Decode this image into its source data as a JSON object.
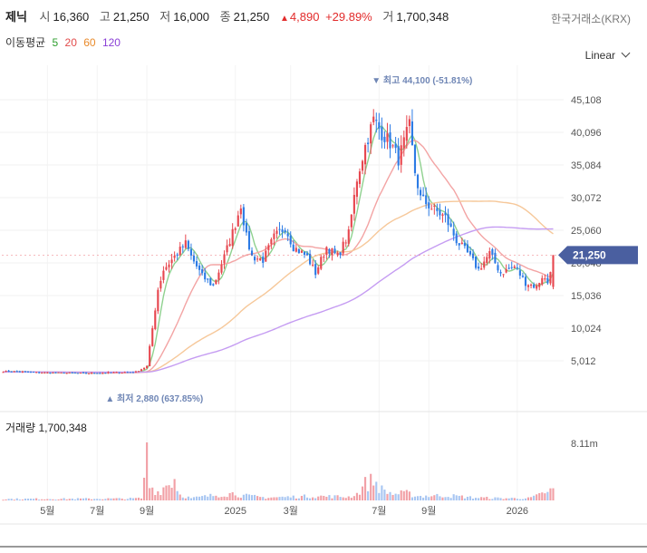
{
  "header": {
    "name": "제닉",
    "open_label": "시",
    "open": "16,360",
    "high_label": "고",
    "high": "21,250",
    "low_label": "저",
    "low": "16,000",
    "close_label": "종",
    "close": "21,250",
    "change_arrow": "▲",
    "change": "4,890",
    "change_pct": "+29.89%",
    "volume_label": "거",
    "volume": "1,700,348"
  },
  "exchange": "한국거래소(KRX)",
  "ma_legend": {
    "label": "이동평균",
    "items": [
      {
        "text": "5",
        "color": "#2e9e2e"
      },
      {
        "text": "20",
        "color": "#e24b4b"
      },
      {
        "text": "60",
        "color": "#e98a2a"
      },
      {
        "text": "120",
        "color": "#8a3fd6"
      }
    ]
  },
  "scale_selector": "Linear",
  "volume_title": "거래량 1,700,348",
  "colors": {
    "up": "#e7474f",
    "down": "#2c7be5",
    "ma5": "#8fd18f",
    "ma20": "#f3a4a4",
    "ma60": "#f6c89a",
    "ma120": "#c59cf2",
    "vol_up": "#f2a0a6",
    "vol_down": "#a8c6f2",
    "price_tag": "#4a5fa0"
  },
  "chart_data": {
    "type": "candlestick",
    "y_ticks": [
      "45,108",
      "40,096",
      "35,084",
      "30,072",
      "25,060",
      "20,048",
      "15,036",
      "10,024",
      "5,012"
    ],
    "y_tick_values": [
      45108,
      40096,
      35084,
      30072,
      25060,
      20048,
      15036,
      10024,
      5012
    ],
    "ylim": [
      0,
      49000
    ],
    "x_ticks": [
      "5월",
      "7월",
      "9월",
      "2025",
      "3월",
      "7월",
      "9월",
      "2026"
    ],
    "x_tick_index": [
      16,
      34,
      52,
      84,
      104,
      136,
      154,
      186
    ],
    "n_periods": 200,
    "last_price": "21,250",
    "max_annotation": "▼ 최고 44,100 (-51.81%)",
    "min_annotation": "▲ 최저 2,880 (637.85%)",
    "volume_max_label": "8.11m",
    "volume_max": 8110000,
    "anchors_close": [
      [
        0,
        3400
      ],
      [
        15,
        3200
      ],
      [
        30,
        3100
      ],
      [
        48,
        3300
      ],
      [
        52,
        4200
      ],
      [
        54,
        10000
      ],
      [
        56,
        16000
      ],
      [
        58,
        19000
      ],
      [
        62,
        21000
      ],
      [
        66,
        23000
      ],
      [
        68,
        21000
      ],
      [
        72,
        18000
      ],
      [
        76,
        16500
      ],
      [
        80,
        21000
      ],
      [
        84,
        26000
      ],
      [
        86,
        29000
      ],
      [
        88,
        24000
      ],
      [
        90,
        21000
      ],
      [
        94,
        20500
      ],
      [
        98,
        24000
      ],
      [
        102,
        25500
      ],
      [
        105,
        22500
      ],
      [
        110,
        21000
      ],
      [
        113,
        18500
      ],
      [
        117,
        22500
      ],
      [
        121,
        21000
      ],
      [
        125,
        24500
      ],
      [
        128,
        33000
      ],
      [
        131,
        38000
      ],
      [
        134,
        42000
      ],
      [
        137,
        40000
      ],
      [
        140,
        38500
      ],
      [
        143,
        36000
      ],
      [
        147,
        41000
      ],
      [
        149,
        34000
      ],
      [
        151,
        30000
      ],
      [
        155,
        28500
      ],
      [
        160,
        27000
      ],
      [
        164,
        23500
      ],
      [
        168,
        21500
      ],
      [
        172,
        19000
      ],
      [
        176,
        21500
      ],
      [
        180,
        18500
      ],
      [
        185,
        19500
      ],
      [
        189,
        17000
      ],
      [
        193,
        16360
      ],
      [
        195,
        18000
      ],
      [
        197,
        17000
      ],
      [
        199,
        21250
      ]
    ],
    "anchors_volume": [
      [
        0,
        200000
      ],
      [
        45,
        250000
      ],
      [
        50,
        300000
      ],
      [
        51,
        2500000
      ],
      [
        52,
        8110000
      ],
      [
        53,
        2000000
      ],
      [
        56,
        1200000
      ],
      [
        62,
        3000000
      ],
      [
        64,
        800000
      ],
      [
        68,
        300000
      ],
      [
        80,
        900000
      ],
      [
        84,
        1000000
      ],
      [
        86,
        700000
      ],
      [
        95,
        400000
      ],
      [
        105,
        500000
      ],
      [
        112,
        600000
      ],
      [
        125,
        500000
      ],
      [
        128,
        900000
      ],
      [
        131,
        2300000
      ],
      [
        134,
        2800000
      ],
      [
        137,
        1500000
      ],
      [
        141,
        900000
      ],
      [
        146,
        1000000
      ],
      [
        150,
        600000
      ],
      [
        160,
        700000
      ],
      [
        170,
        400000
      ],
      [
        180,
        300000
      ],
      [
        190,
        300000
      ],
      [
        193,
        600000
      ],
      [
        195,
        900000
      ],
      [
        196,
        1200000
      ],
      [
        197,
        1000000
      ],
      [
        199,
        1700348
      ]
    ],
    "ma_series": [
      {
        "name": "5",
        "window": 5
      },
      {
        "name": "20",
        "window": 20
      },
      {
        "name": "60",
        "window": 60
      },
      {
        "name": "120",
        "window": 120
      }
    ]
  }
}
